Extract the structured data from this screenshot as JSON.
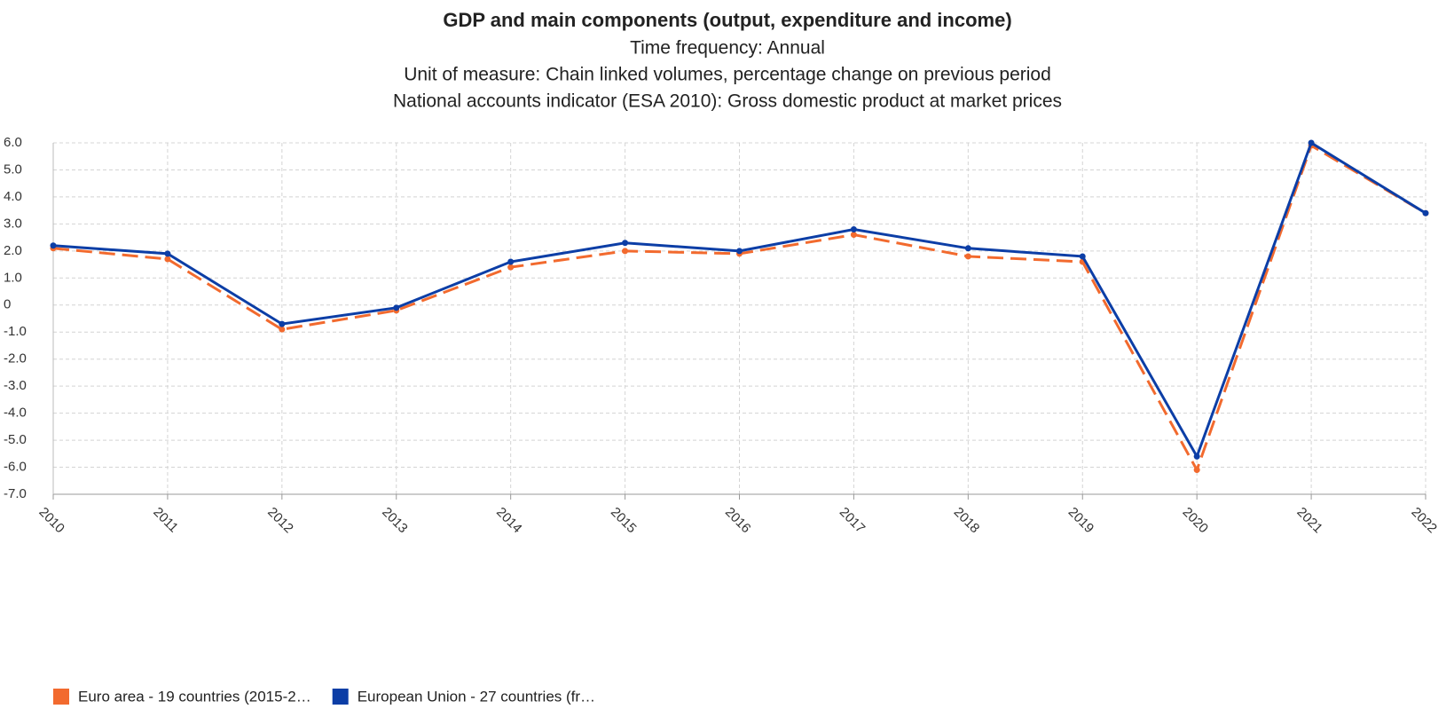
{
  "chart_data": {
    "type": "line",
    "title": "GDP and main components (output, expenditure and income)",
    "subtitles": [
      "Time frequency: Annual",
      "Unit of measure: Chain linked volumes, percentage change on previous period",
      "National accounts indicator (ESA 2010): Gross domestic product at market prices"
    ],
    "categories": [
      "2010",
      "2011",
      "2012",
      "2013",
      "2014",
      "2015",
      "2016",
      "2017",
      "2018",
      "2019",
      "2020",
      "2021",
      "2022"
    ],
    "series": [
      {
        "name": "Euro area - 19 countries  (2015-2…",
        "color": "#f26a2e",
        "dashed": true,
        "values": [
          2.1,
          1.7,
          -0.9,
          -0.2,
          1.4,
          2.0,
          1.9,
          2.6,
          1.8,
          1.6,
          -6.1,
          5.9,
          3.4
        ]
      },
      {
        "name": "European Union - 27 countries (fr…",
        "color": "#0c3ea6",
        "dashed": false,
        "values": [
          2.2,
          1.9,
          -0.7,
          -0.1,
          1.6,
          2.3,
          2.0,
          2.8,
          2.1,
          1.8,
          -5.6,
          6.0,
          3.4
        ]
      }
    ],
    "ylim": [
      -7,
      6
    ],
    "yticks": [
      {
        "value": 6,
        "label": "6.0"
      },
      {
        "value": 5,
        "label": "5.0"
      },
      {
        "value": 4,
        "label": "4.0"
      },
      {
        "value": 3,
        "label": "3.0"
      },
      {
        "value": 2,
        "label": "2.0"
      },
      {
        "value": 1,
        "label": "1.0"
      },
      0,
      {
        "value": -1,
        "label": "-1.0"
      },
      {
        "value": -2,
        "label": "-2.0"
      },
      {
        "value": -3,
        "label": "-3.0"
      },
      {
        "value": -4,
        "label": "-4.0"
      },
      {
        "value": -5,
        "label": "-5.0"
      },
      {
        "value": -6,
        "label": "-6.0"
      },
      {
        "value": -7,
        "label": "-7.0"
      }
    ],
    "grid": true
  }
}
